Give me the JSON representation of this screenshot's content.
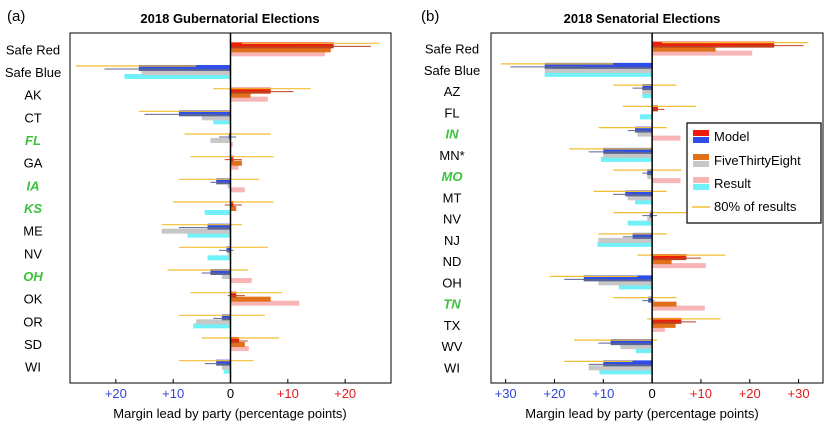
{
  "figure": {
    "legend": {
      "model": "Model",
      "fte": "FiveThirtyEight",
      "result": "Result",
      "range": "80% of results"
    },
    "colors": {
      "red_strong": "#ee1c0a",
      "red_dark": "#c1401b",
      "blue_strong": "#2f4ee8",
      "blue_dark": "#5b6596",
      "fte_red": "#e0701a",
      "fte_blue": "#c7c7c7",
      "result_red": "#f7b5b5",
      "result_blue": "#6ff1f7",
      "range": "#f2be32",
      "zero_line": "#000000",
      "tick_red": "#e31a1c",
      "tick_blue": "#3246d6",
      "highlight_label": "#3cc23c"
    }
  },
  "chart_data": [
    {
      "type": "bar",
      "panel_label": "(a)",
      "title": "2018 Gubernatorial Elections",
      "xlabel": "Margin lead by party (percentage points)",
      "xlim": [
        -28,
        28
      ],
      "xticks": [
        {
          "value": -20,
          "label": "+20",
          "party": "blue"
        },
        {
          "value": -10,
          "label": "+10",
          "party": "blue"
        },
        {
          "value": 0,
          "label": "0",
          "party": "neutral"
        },
        {
          "value": 10,
          "label": "+10",
          "party": "red"
        },
        {
          "value": 20,
          "label": "+20",
          "party": "red"
        }
      ],
      "rows": [
        {
          "label": "Safe Red",
          "highlight": false,
          "model": 18,
          "model_range": [
            11,
            24.5
          ],
          "fte": 17.5,
          "result": 16.5,
          "range80": [
            2,
            26
          ]
        },
        {
          "label": "Safe Blue",
          "highlight": false,
          "model": -16,
          "model_range": [
            -22,
            -9
          ],
          "fte": -15.5,
          "result": -18.5,
          "range80": [
            -27,
            -6
          ]
        },
        {
          "label": "AK",
          "highlight": false,
          "model": 7,
          "model_range": [
            1,
            11
          ],
          "fte": 3.5,
          "result": 6.5,
          "range80": [
            -3,
            14
          ]
        },
        {
          "label": "CT",
          "highlight": false,
          "model": -9,
          "model_range": [
            -15,
            -3
          ],
          "fte": -5,
          "result": -3,
          "range80": [
            -16,
            0
          ]
        },
        {
          "label": "FL",
          "highlight": true,
          "model": -0.3,
          "model_range": [
            -2,
            1
          ],
          "fte": -3.5,
          "result": 0.4,
          "range80": [
            -8,
            7
          ]
        },
        {
          "label": "GA",
          "highlight": false,
          "model": 0.5,
          "model_range": [
            -1,
            2
          ],
          "fte": 2,
          "result": 1.4,
          "range80": [
            -7,
            7.5
          ]
        },
        {
          "label": "IA",
          "highlight": true,
          "model": -2.5,
          "model_range": [
            -3.5,
            -1
          ],
          "fte": -0.5,
          "result": 2.5,
          "range80": [
            -9,
            5
          ]
        },
        {
          "label": "KS",
          "highlight": true,
          "model": 0.5,
          "model_range": [
            -1,
            2
          ],
          "fte": 1,
          "result": -4.5,
          "range80": [
            -10,
            7.5
          ]
        },
        {
          "label": "ME",
          "highlight": false,
          "model": -4,
          "model_range": [
            -9,
            0
          ],
          "fte": -12,
          "result": -7.5,
          "range80": [
            -12,
            2
          ]
        },
        {
          "label": "NV",
          "highlight": false,
          "model": -0.7,
          "model_range": [
            -2,
            0.5
          ],
          "fte": -0.5,
          "result": -4,
          "range80": [
            -9,
            6.5
          ]
        },
        {
          "label": "OH",
          "highlight": true,
          "model": -3.5,
          "model_range": [
            -5,
            -2
          ],
          "fte": -1.5,
          "result": 3.7,
          "range80": [
            -11,
            3
          ]
        },
        {
          "label": "OK",
          "highlight": false,
          "model": 1,
          "model_range": [
            -0.5,
            2.5
          ],
          "fte": 7,
          "result": 12,
          "range80": [
            -7,
            9
          ]
        },
        {
          "label": "OR",
          "highlight": false,
          "model": -1.5,
          "model_range": [
            -3,
            0
          ],
          "fte": -6,
          "result": -6.5,
          "range80": [
            -9,
            6
          ]
        },
        {
          "label": "SD",
          "highlight": false,
          "model": 1.5,
          "model_range": [
            0,
            3
          ],
          "fte": 2.5,
          "result": 3.2,
          "range80": [
            -5,
            8.5
          ]
        },
        {
          "label": "WI",
          "highlight": false,
          "model": -2.5,
          "model_range": [
            -4.5,
            -1
          ],
          "fte": -1.5,
          "result": -1.2,
          "range80": [
            -9,
            4
          ]
        }
      ]
    },
    {
      "type": "bar",
      "panel_label": "(b)",
      "title": "2018 Senatorial Elections",
      "xlabel": "Margin lead by party (percentage points)",
      "xlim": [
        -33,
        35
      ],
      "xticks": [
        {
          "value": -30,
          "label": "+30",
          "party": "blue"
        },
        {
          "value": -20,
          "label": "+20",
          "party": "blue"
        },
        {
          "value": -10,
          "label": "+10",
          "party": "blue"
        },
        {
          "value": 0,
          "label": "0",
          "party": "neutral"
        },
        {
          "value": 10,
          "label": "+10",
          "party": "red"
        },
        {
          "value": 20,
          "label": "+20",
          "party": "red"
        },
        {
          "value": 30,
          "label": "+30",
          "party": "red"
        }
      ],
      "rows": [
        {
          "label": "Safe Red",
          "highlight": false,
          "model": 25,
          "model_range": [
            17,
            31
          ],
          "fte": 13,
          "result": 20.5,
          "range80": [
            2,
            32
          ]
        },
        {
          "label": "Safe Blue",
          "highlight": false,
          "model": -22,
          "model_range": [
            -29,
            -14
          ],
          "fte": -22,
          "result": -22,
          "range80": [
            -31,
            -8
          ]
        },
        {
          "label": "AZ",
          "highlight": false,
          "model": -2,
          "model_range": [
            -4,
            0
          ],
          "fte": -2,
          "result": -2,
          "range80": [
            -8,
            5
          ]
        },
        {
          "label": "FL",
          "highlight": false,
          "model": 1.2,
          "model_range": [
            0,
            2.5
          ],
          "fte": 0,
          "result": -2.5,
          "range80": [
            -6,
            9
          ]
        },
        {
          "label": "IN",
          "highlight": true,
          "model": -3.5,
          "model_range": [
            -5,
            -2
          ],
          "fte": -3,
          "result": 5.8,
          "range80": [
            -11,
            3
          ]
        },
        {
          "label": "MN*",
          "highlight": false,
          "model": -10,
          "model_range": [
            -13,
            -6
          ],
          "fte": -10,
          "result": -10.5,
          "range80": [
            -17,
            0
          ]
        },
        {
          "label": "MO",
          "highlight": true,
          "model": -1,
          "model_range": [
            -2,
            0
          ],
          "fte": -1,
          "result": 5.8,
          "range80": [
            -8,
            6
          ]
        },
        {
          "label": "MT",
          "highlight": false,
          "model": -5.5,
          "model_range": [
            -8,
            -3
          ],
          "fte": -5,
          "result": -3.5,
          "range80": [
            -12,
            3
          ]
        },
        {
          "label": "NV",
          "highlight": false,
          "model": -0.5,
          "model_range": [
            -2,
            1
          ],
          "fte": -1,
          "result": -5,
          "range80": [
            -8,
            7
          ]
        },
        {
          "label": "NJ",
          "highlight": false,
          "model": -4,
          "model_range": [
            -6,
            -2
          ],
          "fte": -11,
          "result": -11.2,
          "range80": [
            -11,
            3
          ]
        },
        {
          "label": "ND",
          "highlight": false,
          "model": 7,
          "model_range": [
            3,
            10
          ],
          "fte": 4,
          "result": 11,
          "range80": [
            -3,
            15
          ]
        },
        {
          "label": "OH",
          "highlight": false,
          "model": -14,
          "model_range": [
            -18,
            -9
          ],
          "fte": -11,
          "result": -6.8,
          "range80": [
            -21,
            -3
          ]
        },
        {
          "label": "TN",
          "highlight": true,
          "model": -0.8,
          "model_range": [
            -2,
            0.5
          ],
          "fte": 5,
          "result": 10.8,
          "range80": [
            -8,
            5
          ]
        },
        {
          "label": "TX",
          "highlight": false,
          "model": 6,
          "model_range": [
            2,
            9
          ],
          "fte": 4.8,
          "result": 2.6,
          "range80": [
            -1,
            14
          ]
        },
        {
          "label": "WV",
          "highlight": false,
          "model": -8.5,
          "model_range": [
            -11,
            -5
          ],
          "fte": -6.5,
          "result": -3.3,
          "range80": [
            -16,
            1
          ]
        },
        {
          "label": "WI",
          "highlight": false,
          "model": -10,
          "model_range": [
            -13,
            -7
          ],
          "fte": -13,
          "result": -10.8,
          "range80": [
            -18,
            -4
          ]
        }
      ]
    }
  ]
}
